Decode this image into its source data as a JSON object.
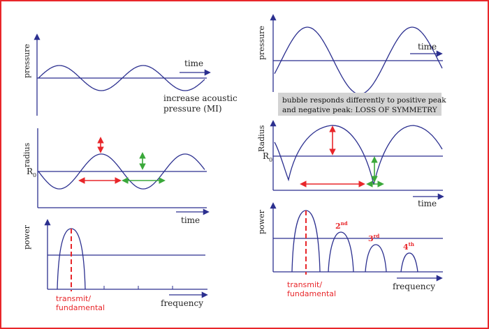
{
  "colors": {
    "frame": "#e8262a",
    "axis": "#2b2f8f",
    "curve": "#2b2f8f",
    "red": "#e8262a",
    "green": "#3aa83a",
    "note_bg": "#d3d3d3"
  },
  "left": {
    "pressure": {
      "ylabel": "pressure",
      "xlabel": "time",
      "caption_line1": "increase acoustic",
      "caption_line2": "pressure (MI)"
    },
    "radius": {
      "ylabel": "radius",
      "r0": "R",
      "r0_sub": "0",
      "xlabel": "time"
    },
    "power": {
      "ylabel": "power",
      "xlabel": "frequency",
      "transmit_line1": "transmit/",
      "transmit_line2": "fundamental"
    }
  },
  "right": {
    "pressure": {
      "ylabel": "pressure",
      "xlabel": "time"
    },
    "note": {
      "line1": "bubble responds differently to positive peak",
      "line2": "and negative peak: LOSS OF SYMMETRY"
    },
    "radius": {
      "ylabel": "Radius",
      "r0": "R",
      "r0_sub": "0",
      "xlabel": "time"
    },
    "power": {
      "ylabel": "power",
      "xlabel": "frequency",
      "transmit_line1": "transmit/",
      "transmit_line2": "fundamental",
      "harmonics": [
        {
          "num": "2",
          "sup": "nd"
        },
        {
          "num": "3",
          "sup": "rd"
        },
        {
          "num": "4",
          "sup": "th"
        }
      ]
    }
  }
}
